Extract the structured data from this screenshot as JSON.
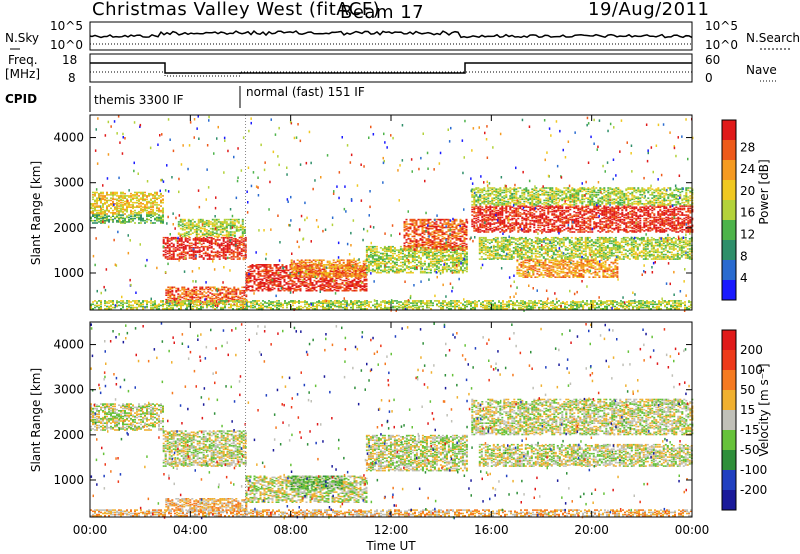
{
  "header": {
    "title": "Christmas Valley West (fitACF)",
    "beam": "Beam 17",
    "date": "19/Aug/2011"
  },
  "strip_panels": {
    "sky": {
      "left_label": "N.Sky",
      "right_label": "N.Search",
      "left_ticks": [
        "10^5",
        "10^0"
      ],
      "right_ticks": [
        "10^5",
        "10^0"
      ]
    },
    "freq": {
      "left_label_line1": "Freq.",
      "left_label_line2": "[MHz]",
      "right_label": "Nave",
      "left_ticks": [
        "18",
        "8"
      ],
      "right_ticks": [
        "60",
        "0"
      ]
    },
    "cpid": {
      "label": "CPID",
      "modes": [
        "themis 3300 IF",
        "normal (fast) 151 IF"
      ]
    }
  },
  "chart_data": [
    {
      "type": "heatmap",
      "name_key": "power",
      "xlabel": "Time UT",
      "ylabel": "Slant Range [km]",
      "y_ticks": [
        "1000",
        "2000",
        "3000",
        "4000"
      ],
      "ylim": [
        180,
        4500
      ],
      "colorbar_label": "Power [dB]",
      "colorbar_ticks": [
        "4",
        "8",
        "12",
        "16",
        "20",
        "24",
        "28"
      ],
      "colorbar_colors": [
        "#1a1aff",
        "#2a6bd0",
        "#2f8f6a",
        "#4db34a",
        "#b3d23a",
        "#f0c820",
        "#f59a20",
        "#ee5a1a",
        "#e01a1a"
      ],
      "regions": [
        {
          "t0": 0.0,
          "t1": 2.9,
          "r0": 2300,
          "r1": 2800,
          "level": 5
        },
        {
          "t0": 0.0,
          "t1": 2.9,
          "r0": 2100,
          "r1": 2300,
          "level": 3
        },
        {
          "t0": 2.9,
          "t1": 6.2,
          "r0": 1300,
          "r1": 1800,
          "level": 8
        },
        {
          "t0": 3.5,
          "t1": 6.2,
          "r0": 1800,
          "r1": 2200,
          "level": 4
        },
        {
          "t0": 3.0,
          "t1": 6.2,
          "r0": 300,
          "r1": 700,
          "level": 7
        },
        {
          "t0": 6.2,
          "t1": 11.0,
          "r0": 600,
          "r1": 1200,
          "level": 8
        },
        {
          "t0": 8.0,
          "t1": 11.0,
          "r0": 900,
          "r1": 1300,
          "level": 6
        },
        {
          "t0": 11.0,
          "t1": 15.0,
          "r0": 1000,
          "r1": 1600,
          "level": 4
        },
        {
          "t0": 12.5,
          "t1": 15.0,
          "r0": 1500,
          "r1": 2200,
          "level": 7
        },
        {
          "t0": 15.2,
          "t1": 24.0,
          "r0": 1900,
          "r1": 2500,
          "level": 8
        },
        {
          "t0": 15.2,
          "t1": 24.0,
          "r0": 2500,
          "r1": 2900,
          "level": 4
        },
        {
          "t0": 15.5,
          "t1": 24.0,
          "r0": 1300,
          "r1": 1800,
          "level": 4
        },
        {
          "t0": 17.0,
          "t1": 21.0,
          "r0": 900,
          "r1": 1300,
          "level": 6
        },
        {
          "t0": 0.0,
          "t1": 24.0,
          "r0": 200,
          "r1": 400,
          "level": 4
        }
      ]
    },
    {
      "type": "heatmap",
      "name_key": "velocity",
      "xlabel": "Time UT",
      "ylabel": "Slant Range [km]",
      "y_ticks": [
        "1000",
        "2000",
        "3000",
        "4000"
      ],
      "ylim": [
        180,
        4500
      ],
      "colorbar_label": "Velocity [m s⁻¹]",
      "colorbar_ticks": [
        "200",
        "100",
        "50",
        "15",
        "-15",
        "-50",
        "-100",
        "-200"
      ],
      "colorbar_colors": [
        "#1a1a9a",
        "#2040c0",
        "#2f8f3a",
        "#66c23a",
        "#c0c0b8",
        "#f0b030",
        "#f57a20",
        "#ee3a1a",
        "#e01a1a"
      ],
      "regions": [
        {
          "t0": 0.0,
          "t1": 2.9,
          "r0": 2100,
          "r1": 2700,
          "level": 4
        },
        {
          "t0": 2.9,
          "t1": 6.2,
          "r0": 1300,
          "r1": 2100,
          "level": 4
        },
        {
          "t0": 3.0,
          "t1": 6.2,
          "r0": 300,
          "r1": 600,
          "level": 5
        },
        {
          "t0": 6.2,
          "t1": 11.0,
          "r0": 500,
          "r1": 1100,
          "level": 4
        },
        {
          "t0": 8.0,
          "t1": 10.0,
          "r0": 800,
          "r1": 1100,
          "level": 3
        },
        {
          "t0": 11.0,
          "t1": 15.0,
          "r0": 1200,
          "r1": 2000,
          "level": 4
        },
        {
          "t0": 15.2,
          "t1": 24.0,
          "r0": 2000,
          "r1": 2800,
          "level": 4
        },
        {
          "t0": 15.5,
          "t1": 24.0,
          "r0": 1300,
          "r1": 1800,
          "level": 4
        },
        {
          "t0": 0.0,
          "t1": 24.0,
          "r0": 200,
          "r1": 350,
          "level": 5
        }
      ]
    }
  ],
  "x_axis": {
    "label": "Time UT",
    "ticks": [
      "00:00",
      "04:00",
      "08:00",
      "12:00",
      "16:00",
      "20:00",
      "00:00"
    ],
    "range_hours": [
      0,
      24
    ]
  }
}
